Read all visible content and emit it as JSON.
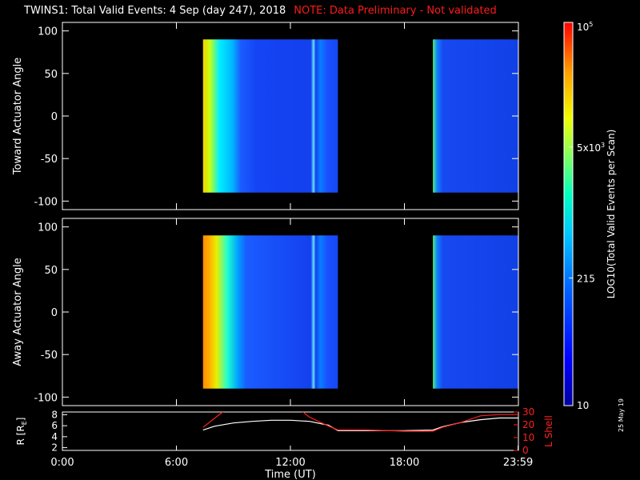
{
  "header": {
    "title": "TWINS1: Total Valid Events:  4 Sep (day 247), 2018",
    "warning": "NOTE: Data Preliminary - Not validated"
  },
  "stamp": "25 May 19",
  "colors": {
    "background": "#000000",
    "axes": "#ffffff",
    "warning": "#ff1a1a",
    "lshell": "#ff2020"
  },
  "chart_data": [
    {
      "type": "heatmap",
      "ylabel": "Toward Actuator Angle",
      "ylim": [
        -110,
        110
      ],
      "yticks": [
        100,
        50,
        0,
        -50,
        -100
      ],
      "xlim_hours": [
        0,
        24
      ],
      "scale": "log",
      "data_intervals_hours": [
        [
          7.4,
          14.5
        ],
        [
          19.5,
          24
        ]
      ]
    },
    {
      "type": "heatmap",
      "ylabel": "Away Actuator Angle",
      "ylim": [
        -110,
        110
      ],
      "yticks": [
        100,
        50,
        0,
        -50,
        -100
      ],
      "xlim_hours": [
        0,
        24
      ],
      "scale": "log",
      "data_intervals_hours": [
        [
          7.4,
          14.5
        ],
        [
          19.5,
          24
        ]
      ]
    },
    {
      "type": "line",
      "ylabel": "R [R",
      "ylabel_sub": "E",
      "ylabel_end": "]",
      "y2label": "L Shell",
      "ylim": [
        1.5,
        8.5
      ],
      "yticks": [
        2,
        4,
        6,
        8
      ],
      "y2lim": [
        0,
        30
      ],
      "y2ticks": [
        0,
        10,
        20,
        30
      ],
      "xlabel": "Time (UT)",
      "xticks_hours": [
        0,
        6,
        12,
        18,
        23.983
      ],
      "xtick_labels": [
        "0:00",
        "6:00",
        "12:00",
        "18:00",
        "23:59"
      ],
      "series": [
        {
          "axis": "left",
          "color": "#ffffff",
          "x": [
            7.4,
            8,
            9,
            10,
            11,
            12,
            13,
            14,
            14.5,
            16,
            18,
            19.5,
            20,
            21,
            22,
            23,
            24
          ],
          "y": [
            5.2,
            5.9,
            6.5,
            6.8,
            7.0,
            7.0,
            6.8,
            6.1,
            5.1,
            5.1,
            5.1,
            5.2,
            5.8,
            6.6,
            7.1,
            7.4,
            7.4
          ]
        },
        {
          "axis": "right",
          "color": "#ff2020",
          "x": [
            7.4,
            8,
            8.7,
            12.4,
            13,
            14,
            14.5,
            16,
            18,
            19.5,
            20,
            21,
            22,
            23,
            24
          ],
          "y": [
            18,
            25,
            33,
            33,
            26,
            19,
            16,
            16,
            15,
            15,
            18,
            22,
            27,
            28,
            28
          ]
        }
      ]
    }
  ],
  "colorbar": {
    "label": "LOG10(Total Valid Events per Scan)",
    "range": [
      10,
      100000
    ],
    "ticks": [
      {
        "value": 10,
        "label": "10"
      },
      {
        "value": 215,
        "label": "215"
      },
      {
        "value": 5000,
        "label": "5x10^3"
      },
      {
        "value": 100000,
        "label": "10^5"
      }
    ]
  }
}
